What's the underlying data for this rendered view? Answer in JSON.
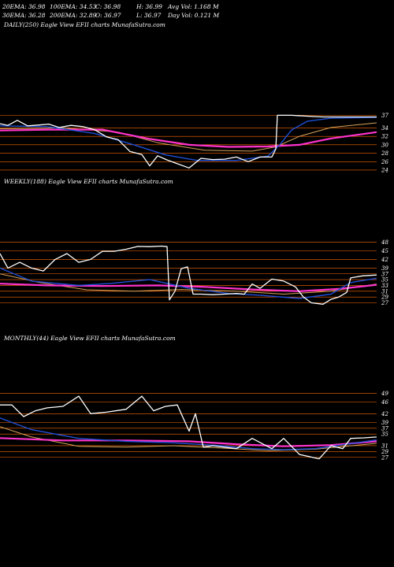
{
  "header": {
    "row1": [
      "20EMA: 36.98",
      "100EMA: 34.53",
      "C: 36.98",
      "H: 36.99",
      "Avg Vol: 1.168  M"
    ],
    "row2": [
      "30EMA: 36.28",
      "200EMA: 32.89",
      "O: 36.97",
      "L: 36.97",
      "Day Vol: 0.121 M"
    ]
  },
  "colors": {
    "background": "#000000",
    "price": "#ffffff",
    "ema_fast": "#1f4fd6",
    "ema_pink": "#ff33cc",
    "ema_gold": "#d7a35a",
    "grid": "#ff6a00"
  },
  "chart_data": [
    {
      "type": "line",
      "title": "DAILY(250) Eagle  View  EFII charts MunafaSutra.com",
      "y_ticks": [
        37,
        34,
        32,
        30,
        28,
        26,
        24
      ],
      "ylim": [
        22.5,
        39.5
      ],
      "x_count": 250,
      "series": [
        {
          "name": "price",
          "values": [
            [
              0,
              35
            ],
            [
              10,
              34.6
            ],
            [
              22,
              35.8
            ],
            [
              35,
              34.5
            ],
            [
              50,
              34.7
            ],
            [
              62,
              34.9
            ],
            [
              75,
              34.1
            ],
            [
              90,
              34.6
            ],
            [
              105,
              34.3
            ],
            [
              120,
              33.6
            ],
            [
              135,
              31.9
            ],
            [
              150,
              31.2
            ],
            [
              165,
              28.4
            ],
            [
              180,
              27.7
            ],
            [
              190,
              25.0
            ],
            [
              200,
              27.4
            ],
            [
              212,
              26.4
            ],
            [
              225,
              25.5
            ],
            [
              240,
              24.5
            ],
            [
              255,
              26.8
            ],
            [
              270,
              26.5
            ],
            [
              285,
              26.6
            ],
            [
              300,
              27.1
            ],
            [
              315,
              26.0
            ],
            [
              330,
              27.1
            ],
            [
              345,
              27.1
            ],
            [
              350,
              29.0
            ],
            [
              352,
              37.0
            ],
            [
              370,
              37.0
            ],
            [
              390,
              36.8
            ],
            [
              410,
              36.6
            ],
            [
              430,
              36.6
            ],
            [
              450,
              36.6
            ],
            [
              478,
              36.6
            ]
          ]
        },
        {
          "name": "ema_fast",
          "values": [
            [
              0,
              34.5
            ],
            [
              60,
              34.3
            ],
            [
              120,
              32.7
            ],
            [
              170,
              30.0
            ],
            [
              210,
              27.6
            ],
            [
              250,
              26.3
            ],
            [
              300,
              26.3
            ],
            [
              340,
              27.3
            ],
            [
              355,
              30.0
            ],
            [
              370,
              33.5
            ],
            [
              390,
              35.6
            ],
            [
              420,
              36.3
            ],
            [
              478,
              36.5
            ]
          ]
        },
        {
          "name": "ema_pink",
          "values": [
            [
              0,
              33.4
            ],
            [
              60,
              33.6
            ],
            [
              130,
              33.6
            ],
            [
              190,
              31.4
            ],
            [
              240,
              30.0
            ],
            [
              290,
              29.5
            ],
            [
              340,
              29.6
            ],
            [
              380,
              30.0
            ],
            [
              420,
              31.5
            ],
            [
              478,
              33.0
            ]
          ]
        },
        {
          "name": "ema_gold",
          "values": [
            [
              0,
              33.8
            ],
            [
              80,
              34.0
            ],
            [
              150,
              33.0
            ],
            [
              200,
              30.5
            ],
            [
              260,
              28.7
            ],
            [
              320,
              28.5
            ],
            [
              350,
              29.5
            ],
            [
              380,
              32.0
            ],
            [
              420,
              34.1
            ],
            [
              478,
              35.2
            ]
          ]
        }
      ]
    },
    {
      "type": "line",
      "title": "WEEKLY(188) Eagle  View  EFII charts MunafaSutra.com",
      "y_ticks": [
        48,
        45,
        42,
        39,
        37,
        35,
        33,
        31,
        29,
        27
      ],
      "ylim": [
        25.5,
        50.0
      ],
      "x_count": 188,
      "series": [
        {
          "name": "price",
          "values": [
            [
              0,
              44
            ],
            [
              10,
              39
            ],
            [
              25,
              41
            ],
            [
              40,
              39
            ],
            [
              55,
              38
            ],
            [
              70,
              42
            ],
            [
              85,
              44
            ],
            [
              100,
              41
            ],
            [
              115,
              42
            ],
            [
              130,
              44.8
            ],
            [
              145,
              44.8
            ],
            [
              160,
              45.5
            ],
            [
              175,
              46.5
            ],
            [
              190,
              46.4
            ],
            [
              205,
              46.6
            ],
            [
              212,
              46.4
            ],
            [
              215,
              28.0
            ],
            [
              222,
              31.0
            ],
            [
              230,
              38.8
            ],
            [
              238,
              39.4
            ],
            [
              245,
              30.0
            ],
            [
              255,
              30.0
            ],
            [
              270,
              29.8
            ],
            [
              285,
              30.0
            ],
            [
              300,
              30.2
            ],
            [
              310,
              30.0
            ],
            [
              320,
              33.5
            ],
            [
              330,
              32.0
            ],
            [
              345,
              35.2
            ],
            [
              360,
              34.5
            ],
            [
              375,
              32.5
            ],
            [
              385,
              29.0
            ],
            [
              395,
              27.0
            ],
            [
              410,
              26.5
            ],
            [
              420,
              28.2
            ],
            [
              430,
              29.0
            ],
            [
              440,
              30.6
            ],
            [
              445,
              35.6
            ],
            [
              460,
              36.3
            ],
            [
              478,
              36.6
            ]
          ]
        },
        {
          "name": "ema_fast",
          "values": [
            [
              0,
              39.0
            ],
            [
              40,
              34.5
            ],
            [
              100,
              33.0
            ],
            [
              140,
              33.7
            ],
            [
              190,
              35.0
            ],
            [
              240,
              32.0
            ],
            [
              290,
              30.2
            ],
            [
              330,
              29.6
            ],
            [
              380,
              28.5
            ],
            [
              420,
              30.0
            ],
            [
              445,
              34.0
            ],
            [
              478,
              35.5
            ]
          ]
        },
        {
          "name": "ema_pink",
          "values": [
            [
              0,
              33.6
            ],
            [
              60,
              33.0
            ],
            [
              130,
              32.8
            ],
            [
              200,
              33.0
            ],
            [
              260,
              32.5
            ],
            [
              320,
              31.6
            ],
            [
              380,
              31.0
            ],
            [
              430,
              31.8
            ],
            [
              478,
              33.2
            ]
          ]
        },
        {
          "name": "ema_gold",
          "values": [
            [
              0,
              37.0
            ],
            [
              50,
              34.0
            ],
            [
              110,
              31.5
            ],
            [
              170,
              31.0
            ],
            [
              230,
              31.6
            ],
            [
              300,
              31.0
            ],
            [
              360,
              30.0
            ],
            [
              420,
              31.0
            ],
            [
              478,
              33.5
            ]
          ]
        }
      ]
    },
    {
      "type": "line",
      "title": "MONTHLY(44) Eagle  View  EFII charts MunafaSutra.com",
      "y_ticks": [
        49,
        46,
        42,
        39,
        37,
        35,
        31,
        29,
        27
      ],
      "ylim": [
        24.5,
        51.0
      ],
      "x_count": 44,
      "series": [
        {
          "name": "price",
          "values": [
            [
              0,
              45
            ],
            [
              15,
              45
            ],
            [
              30,
              41
            ],
            [
              45,
              43
            ],
            [
              60,
              44
            ],
            [
              80,
              44.5
            ],
            [
              100,
              48
            ],
            [
              115,
              42
            ],
            [
              135,
              42.5
            ],
            [
              160,
              43.5
            ],
            [
              180,
              48
            ],
            [
              195,
              43
            ],
            [
              210,
              44.5
            ],
            [
              225,
              45
            ],
            [
              240,
              36
            ],
            [
              248,
              42
            ],
            [
              258,
              30.5
            ],
            [
              270,
              31
            ],
            [
              300,
              30
            ],
            [
              320,
              33.5
            ],
            [
              345,
              30
            ],
            [
              360,
              33.5
            ],
            [
              380,
              28
            ],
            [
              405,
              26.5
            ],
            [
              420,
              31
            ],
            [
              435,
              30
            ],
            [
              445,
              33.5
            ],
            [
              462,
              33.7
            ],
            [
              478,
              34.0
            ]
          ]
        },
        {
          "name": "ema_fast",
          "values": [
            [
              0,
              40.5
            ],
            [
              40,
              36.5
            ],
            [
              100,
              33.5
            ],
            [
              160,
              32.5
            ],
            [
              220,
              32.0
            ],
            [
              280,
              31.0
            ],
            [
              320,
              30.0
            ],
            [
              360,
              29.6
            ],
            [
              400,
              30.0
            ],
            [
              440,
              31.5
            ],
            [
              478,
              33.0
            ]
          ]
        },
        {
          "name": "ema_pink",
          "values": [
            [
              0,
              33.6
            ],
            [
              80,
              32.8
            ],
            [
              160,
              32.8
            ],
            [
              240,
              32.5
            ],
            [
              300,
              31.5
            ],
            [
              360,
              30.8
            ],
            [
              420,
              31.2
            ],
            [
              478,
              32.5
            ]
          ]
        },
        {
          "name": "ema_gold",
          "values": [
            [
              0,
              37.5
            ],
            [
              40,
              34.0
            ],
            [
              100,
              30.8
            ],
            [
              160,
              30.5
            ],
            [
              220,
              31.0
            ],
            [
              280,
              30.2
            ],
            [
              340,
              29.3
            ],
            [
              400,
              29.8
            ],
            [
              478,
              31.8
            ]
          ]
        }
      ]
    }
  ]
}
